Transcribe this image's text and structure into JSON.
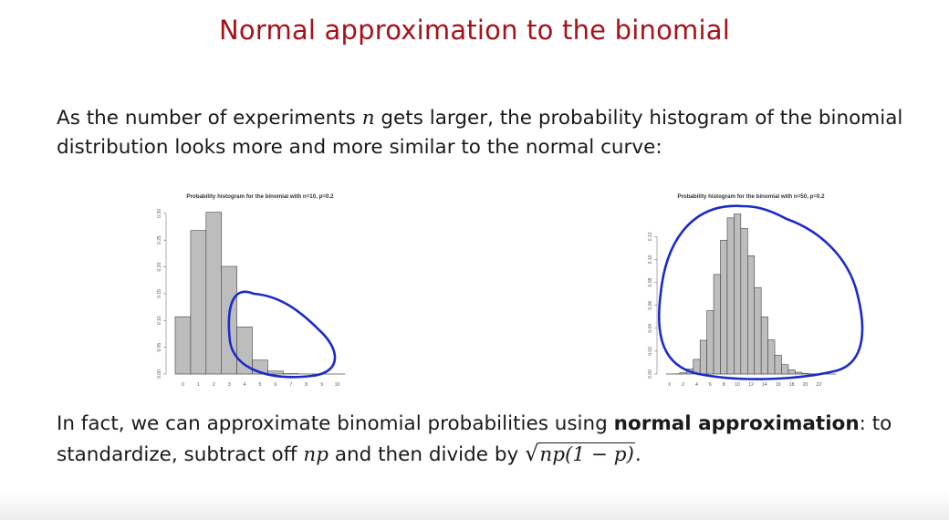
{
  "slide": {
    "title": "Normal approximation to the binomial",
    "intro_text": "As the number of experiments",
    "intro_var": "n",
    "intro_text_2": "gets larger, the probability histogram of the binomial distribution looks more and more similar to the normal curve:",
    "outro_text": "In fact, we can approximate binomial probabilities using",
    "outro_bold": "normal approximation",
    "outro_text_2": ": to standardize, subtract off",
    "outro_var": "np",
    "outro_text_3": "and then divide by",
    "outro_formula": "np(1 − p)",
    "outro_end": "."
  },
  "colors": {
    "title": "#a5121a",
    "bar_fill": "#bdbdbd",
    "bar_stroke": "#444444",
    "ink": "#1a2bc9"
  },
  "chart_data": [
    {
      "type": "bar",
      "title": "Probability histogram for the binomial with n=10, p=0.2",
      "x": [
        0,
        1,
        2,
        3,
        4,
        5,
        6,
        7,
        8,
        9,
        10
      ],
      "values": [
        0.107,
        0.268,
        0.302,
        0.201,
        0.088,
        0.026,
        0.0055,
        0.0008,
        0.0001,
        0.0,
        0.0
      ],
      "xticks": [
        "0",
        "1",
        "2",
        "3",
        "4",
        "5",
        "6",
        "7",
        "8",
        "9",
        "10"
      ],
      "yticks": [
        "0.00",
        "0.05",
        "0.10",
        "0.15",
        "0.20",
        "0.25",
        "0.30"
      ],
      "xlim": [
        -0.5,
        10.5
      ],
      "ylim": [
        0,
        0.31
      ]
    },
    {
      "type": "bar",
      "title": "Probability histogram for the binomial with n=50, p=0.2",
      "x": [
        0,
        1,
        2,
        3,
        4,
        5,
        6,
        7,
        8,
        9,
        10,
        11,
        12,
        13,
        14,
        15,
        16,
        17,
        18,
        19,
        20,
        21,
        22,
        23,
        24
      ],
      "values": [
        0.0,
        0.0002,
        0.0011,
        0.0044,
        0.0128,
        0.0295,
        0.0554,
        0.087,
        0.1169,
        0.1364,
        0.1398,
        0.1271,
        0.1033,
        0.0755,
        0.0499,
        0.0299,
        0.0164,
        0.0082,
        0.0037,
        0.0016,
        0.0006,
        0.0002,
        0.0001,
        0.0,
        0.0
      ],
      "xticks": [
        "0",
        "2",
        "4",
        "6",
        "8",
        "10",
        "12",
        "14",
        "16",
        "18",
        "20",
        "22"
      ],
      "yticks": [
        "0.00",
        "0.02",
        "0.04",
        "0.06",
        "0.08",
        "0.10",
        "0.12"
      ],
      "xlim": [
        -0.5,
        24.5
      ],
      "ylim": [
        0,
        0.145
      ]
    }
  ]
}
